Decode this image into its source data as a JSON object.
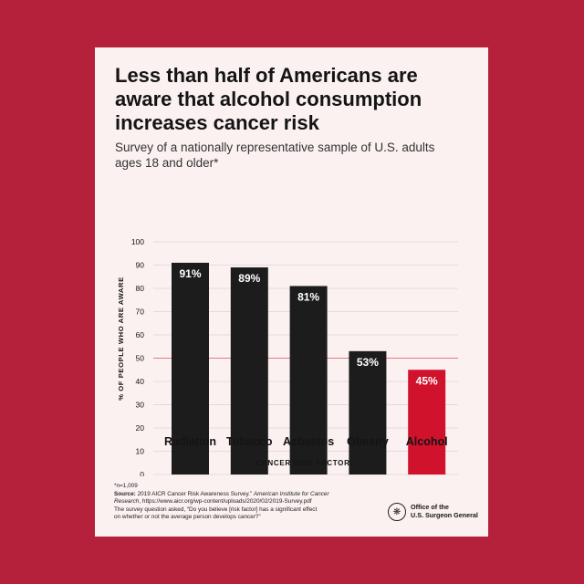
{
  "title": "Less than half of Americans are aware that alcohol consumption increases cancer risk",
  "subtitle": "Survey of a nationally representative sample of U.S. adults ages 18 and older*",
  "colors": {
    "background": "#b5203a",
    "card": "#fbf1f1",
    "bar_default": "#1c1c1c",
    "bar_highlight": "#d0122c",
    "reference_line": "#e07a86"
  },
  "chart_data": {
    "type": "bar",
    "categories": [
      "Radiation",
      "Tobacco",
      "Asbestos",
      "Obesity",
      "Alcohol"
    ],
    "values": [
      91,
      89,
      81,
      53,
      45
    ],
    "data_labels": [
      "91%",
      "89%",
      "81%",
      "53%",
      "45%"
    ],
    "highlight_category": "Alcohol",
    "xlabel": "CANCER RISK FACTOR",
    "ylabel": "% OF PEOPLE WHO ARE AWARE",
    "ylim": [
      0,
      100
    ],
    "yticks": [
      0,
      10,
      20,
      30,
      40,
      50,
      60,
      70,
      80,
      90,
      100
    ],
    "reference_line": 50,
    "grid": true
  },
  "footnote": {
    "n": "*n=1,009",
    "source_label": "Source:",
    "source_text": " 2019 AICR Cancer Risk Awareness Survey.” ",
    "source_org": "American Institute for Cancer",
    "source_org2": "Research",
    "source_url": ", https://www.aicr.org/wp-content/uploads/2020/02/2019-Survey.pdf",
    "question_line1": "The survey question asked, “Do you believe [risk factor] has a significant effect",
    "question_line2": "on whether or not the average person develops cancer?”"
  },
  "logo": {
    "line1": "Office of the",
    "line2": "U.S. Surgeon General",
    "icon": "seal-icon"
  }
}
